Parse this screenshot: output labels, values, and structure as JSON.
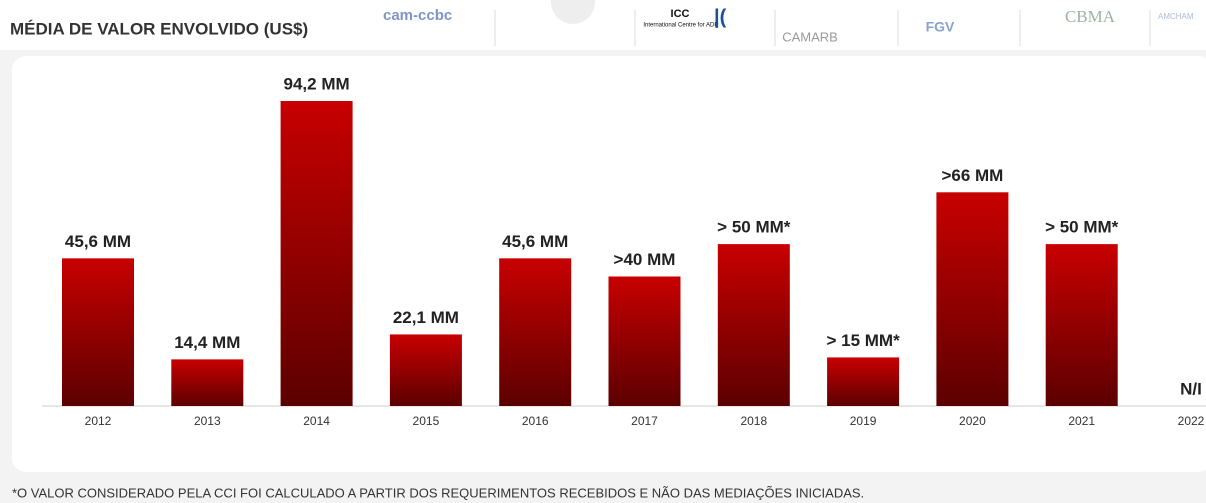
{
  "chart_data": {
    "type": "bar",
    "title": "MÉDIA DE VALOR ENVOLVIDO (US$)",
    "logos": [
      "cam-ccbc",
      "ICC",
      "International Centre for ADR",
      "CAMARB",
      "FGV",
      "CBMA",
      "AMCHAM"
    ],
    "categories": [
      "2012",
      "2013",
      "2014",
      "2015",
      "2016",
      "2017",
      "2018",
      "2019",
      "2020",
      "2021",
      "2022"
    ],
    "values": [
      45.6,
      14.4,
      94.2,
      22.1,
      45.6,
      40,
      50,
      15,
      66,
      50,
      null
    ],
    "value_labels": [
      "45,6 MM",
      "14,4 MM",
      "94,2 MM",
      "22,1 MM",
      "45,6 MM",
      ">40 MM",
      "> 50 MM*",
      "> 15 MM*",
      ">66 MM",
      "> 50 MM*",
      "N/I"
    ],
    "color": "#c00000",
    "footnote": "*O VALOR CONSIDERADO PELA CCI FOI CALCULADO A PARTIR DOS REQUERIMENTOS RECEBIDOS E NÃO DAS MEDIAÇÕES INICIADAS."
  }
}
